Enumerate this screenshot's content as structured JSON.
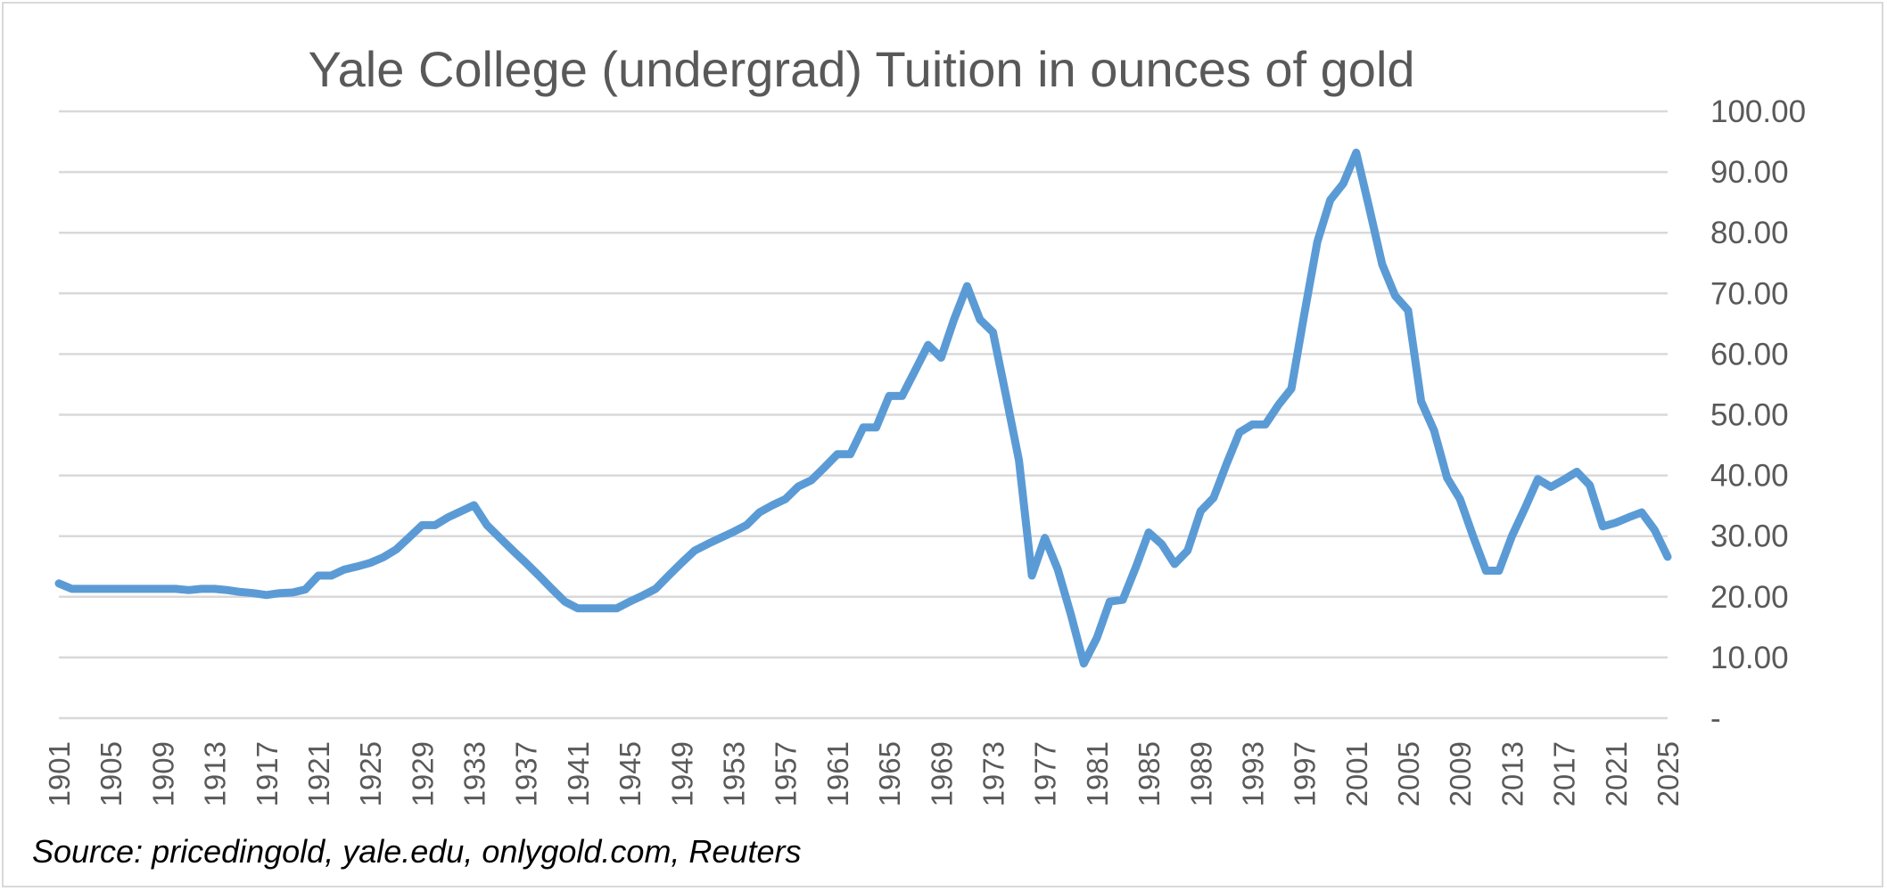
{
  "chart_data": {
    "type": "line",
    "title": "Yale College (undergrad) Tuition in ounces of gold",
    "xlabel": "",
    "ylabel": "",
    "source": "Source: pricedingold, yale.edu, onlygold.com, Reuters",
    "ylim": [
      0,
      100
    ],
    "y_ticks": [
      {
        "value": 0,
        "label": "-"
      },
      {
        "value": 10,
        "label": "10.00"
      },
      {
        "value": 20,
        "label": "20.00"
      },
      {
        "value": 30,
        "label": "30.00"
      },
      {
        "value": 40,
        "label": "40.00"
      },
      {
        "value": 50,
        "label": "50.00"
      },
      {
        "value": 60,
        "label": "60.00"
      },
      {
        "value": 70,
        "label": "70.00"
      },
      {
        "value": 80,
        "label": "80.00"
      },
      {
        "value": 90,
        "label": "90.00"
      },
      {
        "value": 100,
        "label": "100.00"
      }
    ],
    "x_ticks": [
      "1901",
      "1905",
      "1909",
      "1913",
      "1917",
      "1921",
      "1925",
      "1929",
      "1933",
      "1937",
      "1941",
      "1945",
      "1949",
      "1953",
      "1957",
      "1961",
      "1965",
      "1969",
      "1973",
      "1977",
      "1981",
      "1985",
      "1989",
      "1993",
      "1997",
      "2001",
      "2005",
      "2009",
      "2013",
      "2017",
      "2021",
      "2025"
    ],
    "grid": true,
    "legend": "none",
    "series_color": "#5b9bd5",
    "series": [
      {
        "x": [
          1901,
          1902,
          1903,
          1904,
          1905,
          1906,
          1907,
          1908,
          1909,
          1910,
          1911,
          1912,
          1913,
          1914,
          1915,
          1916,
          1917,
          1918,
          1919,
          1920,
          1921,
          1922,
          1923,
          1924,
          1925,
          1926,
          1927,
          1928,
          1929,
          1930,
          1931,
          1932,
          1933,
          1934,
          1935,
          1936,
          1937,
          1938,
          1939,
          1940,
          1941,
          1942,
          1943,
          1944,
          1945,
          1946,
          1947,
          1948,
          1949,
          1950,
          1951,
          1952,
          1953,
          1954,
          1955,
          1956,
          1957,
          1958,
          1959,
          1960,
          1961,
          1962,
          1963,
          1964,
          1965,
          1966,
          1967,
          1968,
          1969,
          1970,
          1971,
          1972,
          1973,
          1974,
          1975,
          1976,
          1977,
          1978,
          1979,
          1980,
          1981,
          1982,
          1983,
          1984,
          1985,
          1986,
          1987,
          1988,
          1989,
          1990,
          1991,
          1992,
          1993,
          1994,
          1995,
          1996,
          1997,
          1998,
          1999,
          2000,
          2001,
          2002,
          2003,
          2004,
          2005,
          2006,
          2007,
          2008,
          2009,
          2010,
          2011,
          2012,
          2013,
          2014,
          2015,
          2016,
          2017,
          2018,
          2019,
          2020,
          2021,
          2022,
          2023,
          2024,
          2025
        ],
        "values": [
          22.2,
          21.3,
          21.3,
          21.3,
          21.3,
          21.3,
          21.3,
          21.3,
          21.3,
          21.3,
          21.1,
          21.3,
          21.3,
          21.1,
          20.8,
          20.6,
          20.3,
          20.6,
          20.7,
          21.2,
          23.5,
          23.5,
          24.5,
          25.0,
          25.6,
          26.5,
          27.8,
          29.8,
          31.8,
          31.8,
          33.1,
          34.1,
          35.1,
          31.8,
          29.7,
          27.6,
          25.6,
          23.5,
          21.3,
          19.2,
          18.1,
          18.1,
          18.1,
          18.1,
          19.2,
          20.2,
          21.3,
          23.5,
          25.6,
          27.6,
          28.7,
          29.7,
          30.7,
          31.8,
          33.9,
          35.1,
          36.1,
          38.2,
          39.2,
          41.3,
          43.5,
          43.5,
          47.9,
          47.9,
          53.1,
          53.1,
          57.3,
          61.5,
          59.4,
          65.7,
          71.2,
          65.7,
          63.6,
          53.2,
          42.5,
          23.5,
          29.7,
          24.5,
          17.1,
          9.0,
          13.2,
          19.2,
          19.5,
          24.8,
          30.6,
          28.7,
          25.4,
          27.6,
          34.1,
          36.3,
          41.9,
          47.1,
          48.4,
          48.4,
          51.6,
          54.3,
          66.6,
          78.5,
          85.4,
          88.1,
          93.2,
          84.1,
          74.8,
          69.6,
          67.2,
          52.2,
          47.4,
          39.6,
          36.1,
          30.0,
          24.3,
          24.3,
          30.0,
          34.6,
          39.4,
          38.1,
          39.3,
          40.6,
          38.4,
          31.6,
          32.2,
          33.1,
          33.9,
          31.0,
          26.6
        ]
      }
    ]
  }
}
